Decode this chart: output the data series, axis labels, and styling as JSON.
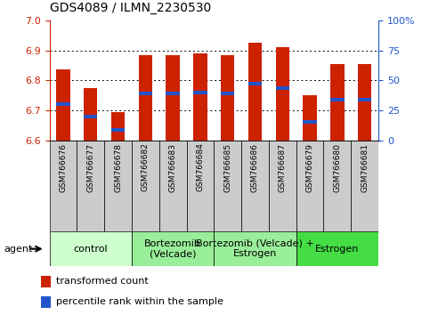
{
  "title": "GDS4089 / ILMN_2230530",
  "samples": [
    "GSM766676",
    "GSM766677",
    "GSM766678",
    "GSM766682",
    "GSM766683",
    "GSM766684",
    "GSM766685",
    "GSM766686",
    "GSM766687",
    "GSM766679",
    "GSM766680",
    "GSM766681"
  ],
  "bar_values": [
    6.835,
    6.775,
    6.695,
    6.885,
    6.885,
    6.89,
    6.885,
    6.925,
    6.91,
    6.75,
    6.855,
    6.855
  ],
  "percentile_values": [
    6.72,
    6.68,
    6.635,
    6.755,
    6.757,
    6.758,
    6.757,
    6.79,
    6.775,
    6.66,
    6.735,
    6.735
  ],
  "y_min": 6.6,
  "y_max": 7.0,
  "y_ticks_left": [
    6.6,
    6.7,
    6.8,
    6.9,
    7.0
  ],
  "y_ticks_right": [
    0,
    25,
    50,
    75,
    100
  ],
  "bar_color": "#cc2200",
  "percentile_color": "#2255cc",
  "grid_color": "#000000",
  "groups": [
    {
      "label": "control",
      "start": 0,
      "end": 3,
      "color": "#ccffcc"
    },
    {
      "label": "Bortezomib\n(Velcade)",
      "start": 3,
      "end": 6,
      "color": "#99ee99"
    },
    {
      "label": "Bortezomib (Velcade) +\nEstrogen",
      "start": 6,
      "end": 9,
      "color": "#99ee99"
    },
    {
      "label": "Estrogen",
      "start": 9,
      "end": 12,
      "color": "#44dd44"
    }
  ],
  "agent_label": "agent",
  "legend_items": [
    {
      "label": "transformed count",
      "color": "#cc2200"
    },
    {
      "label": "percentile rank within the sample",
      "color": "#2255cc"
    }
  ],
  "bar_width": 0.5,
  "sample_bg_color": "#cccccc",
  "sample_label_fontsize": 6.5,
  "group_label_fontsize": 8.0
}
